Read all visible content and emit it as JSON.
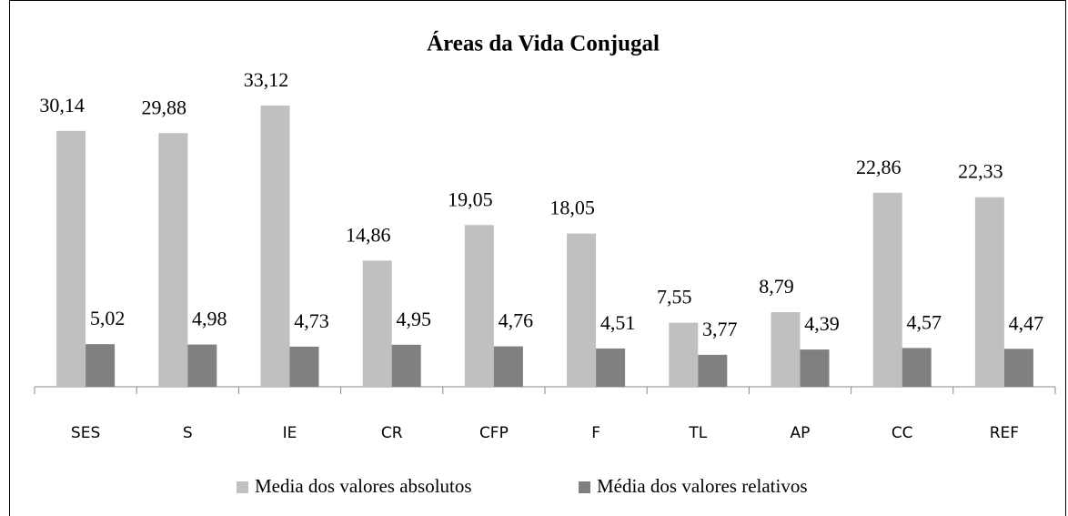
{
  "chart_data": {
    "type": "bar",
    "title": "Áreas da Vida Conjugal",
    "categories": [
      "SES",
      "S",
      "IE",
      "CR",
      "CFP",
      "F",
      "TL",
      "AP",
      "CC",
      "REF"
    ],
    "series": [
      {
        "name": "Media dos valores absolutos",
        "color": "#c0c0c0",
        "values": [
          30.14,
          29.88,
          33.12,
          14.86,
          19.05,
          18.05,
          7.55,
          8.79,
          22.86,
          22.33
        ],
        "value_labels": [
          "30,14",
          "29,88",
          "33,12",
          "14,86",
          "19,05",
          "18,05",
          "7,55",
          "8,79",
          "22,86",
          "22,33"
        ]
      },
      {
        "name": "Média dos valores relativos",
        "color": "#808080",
        "values": [
          5.02,
          4.98,
          4.73,
          4.95,
          4.76,
          4.51,
          3.77,
          4.39,
          4.57,
          4.47
        ],
        "value_labels": [
          "5,02",
          "4,98",
          "4,73",
          "4,95",
          "4,76",
          "4,51",
          "3,77",
          "4,39",
          "4,57",
          "4,47"
        ]
      }
    ],
    "ylim": [
      0,
      35
    ],
    "legend": "bottom"
  }
}
